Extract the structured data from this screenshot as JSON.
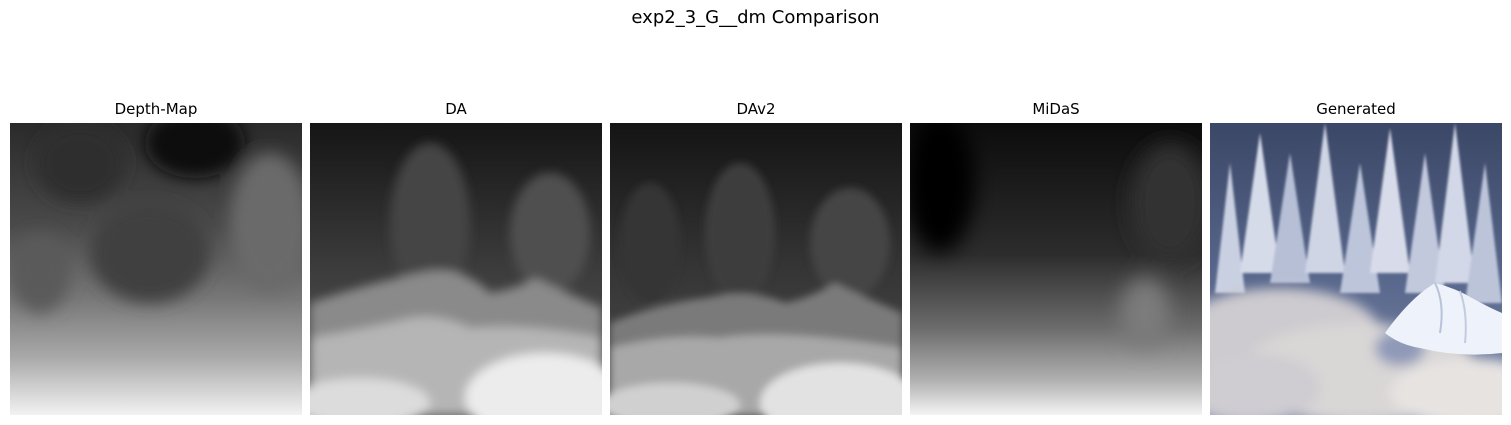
{
  "figure": {
    "title": "exp2_3_G__dm Comparison"
  },
  "panels": [
    {
      "title": "Depth-Map",
      "image": "grayscale-depth-map"
    },
    {
      "title": "DA",
      "image": "grayscale-depth-estimate"
    },
    {
      "title": "DAv2",
      "image": "grayscale-depth-estimate"
    },
    {
      "title": "MiDaS",
      "image": "grayscale-depth-estimate"
    },
    {
      "title": "Generated",
      "image": "snowy-forest-with-clouds-photo"
    }
  ]
}
